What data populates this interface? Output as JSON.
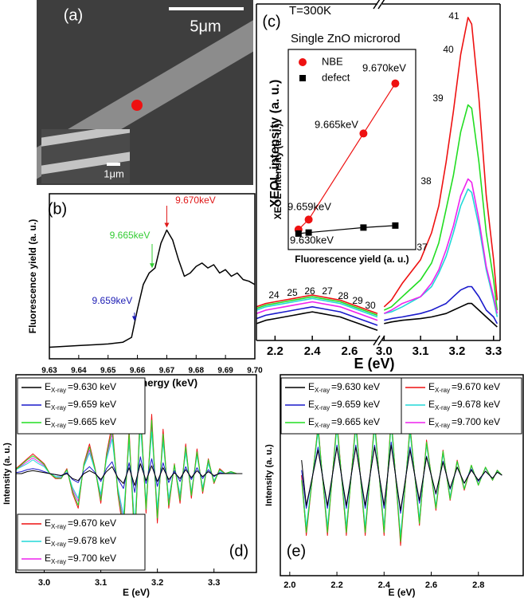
{
  "image_panel": {
    "label": "(a)",
    "scale_bar": "5μm",
    "inset_scale_bar": "1μm"
  },
  "chart_data": [
    {
      "type": "line",
      "panel_label": "(b)",
      "x_label": "X-ray energy (keV)",
      "y_label": "Fluorescence yield (a. u.)",
      "xlim": [
        9.63,
        9.7
      ],
      "xticks": [
        9.63,
        9.64,
        9.65,
        9.66,
        9.67,
        9.68,
        9.69,
        {
          "value": 9.7,
          "label": "9.70"
        }
      ],
      "ylim": [
        0,
        1
      ],
      "color": "#000000",
      "x": [
        9.63,
        9.64,
        9.65,
        9.655,
        9.658,
        9.66,
        9.662,
        9.664,
        9.666,
        9.668,
        9.67,
        9.672,
        9.674,
        9.676,
        9.678,
        9.68,
        9.682,
        9.684,
        9.686,
        9.688,
        9.69,
        9.692,
        9.694,
        9.696,
        9.698,
        9.7
      ],
      "values": [
        0.07,
        0.08,
        0.09,
        0.1,
        0.13,
        0.3,
        0.45,
        0.52,
        0.55,
        0.7,
        0.78,
        0.72,
        0.6,
        0.5,
        0.52,
        0.56,
        0.58,
        0.55,
        0.57,
        0.52,
        0.54,
        0.5,
        0.52,
        0.48,
        0.47,
        0.45
      ],
      "annotations": [
        {
          "x": 9.659,
          "text": "9.659keV",
          "color": "#1c1cb4"
        },
        {
          "x": 9.665,
          "text": "9.665keV",
          "color": "#33cc33"
        },
        {
          "x": 9.67,
          "text": "9.670keV",
          "color": "#e01818"
        }
      ]
    },
    {
      "type": "broken_line",
      "panel_label": "(c)",
      "title": "T=300K",
      "subtitle": "Single ZnO microrod",
      "x_label": "E (eV)",
      "y_label": "XEOL intensity (a. u.)",
      "ylim": [
        0,
        1
      ],
      "segments": [
        {
          "xlim": [
            2.1,
            2.75
          ],
          "xticks": [
            2.2,
            2.4,
            2.6
          ],
          "x": [
            2.1,
            2.15,
            2.2,
            2.25,
            2.3,
            2.35,
            2.4,
            2.45,
            2.5,
            2.55,
            2.6,
            2.65,
            2.7,
            2.75
          ],
          "series": [
            {
              "color": "#000000",
              "values": [
                0.05,
                0.06,
                0.065,
                0.07,
                0.075,
                0.08,
                0.085,
                0.08,
                0.075,
                0.07,
                0.06,
                0.05,
                0.04,
                0.03
              ]
            },
            {
              "color": "#1a1acc",
              "values": [
                0.065,
                0.075,
                0.08,
                0.085,
                0.09,
                0.095,
                0.1,
                0.095,
                0.09,
                0.085,
                0.075,
                0.065,
                0.055,
                0.045
              ]
            },
            {
              "color": "#ee22ee",
              "values": [
                0.08,
                0.09,
                0.095,
                0.1,
                0.105,
                0.11,
                0.115,
                0.11,
                0.105,
                0.1,
                0.09,
                0.08,
                0.07,
                0.06
              ]
            },
            {
              "color": "#22d8d8",
              "values": [
                0.09,
                0.1,
                0.105,
                0.11,
                0.115,
                0.12,
                0.125,
                0.12,
                0.115,
                0.11,
                0.1,
                0.09,
                0.08,
                0.07
              ]
            },
            {
              "color": "#22dd22",
              "values": [
                0.095,
                0.105,
                0.11,
                0.115,
                0.12,
                0.125,
                0.13,
                0.125,
                0.12,
                0.115,
                0.105,
                0.095,
                0.085,
                0.075
              ]
            },
            {
              "color": "#ee1111",
              "values": [
                0.1,
                0.11,
                0.115,
                0.12,
                0.125,
                0.13,
                0.135,
                0.13,
                0.125,
                0.12,
                0.11,
                0.1,
                0.09,
                0.08
              ]
            }
          ],
          "annotations": [
            "24",
            "25",
            "26",
            "27",
            "28",
            "29",
            "30"
          ]
        },
        {
          "xlim": [
            2.995,
            3.318
          ],
          "xticks": [
            {
              "value": 3,
              "label": "3.0"
            },
            3.1,
            3.2,
            3.3
          ],
          "x": [
            3,
            3.02,
            3.05,
            3.1,
            3.13,
            3.15,
            3.17,
            3.19,
            3.21,
            3.23,
            3.24,
            3.26,
            3.28,
            3.3,
            3.31
          ],
          "series": [
            {
              "color": "#000000",
              "values": [
                0.05,
                0.055,
                0.06,
                0.065,
                0.07,
                0.075,
                0.08,
                0.09,
                0.1,
                0.11,
                0.11,
                0.09,
                0.07,
                0.05,
                0.04
              ]
            },
            {
              "color": "#1a1acc",
              "values": [
                0.06,
                0.065,
                0.07,
                0.08,
                0.09,
                0.1,
                0.11,
                0.13,
                0.15,
                0.16,
                0.16,
                0.13,
                0.09,
                0.07,
                0.05
              ]
            },
            {
              "color": "#ee22ee",
              "values": [
                0.08,
                0.09,
                0.11,
                0.13,
                0.17,
                0.21,
                0.27,
                0.34,
                0.43,
                0.48,
                0.47,
                0.36,
                0.22,
                0.13,
                0.08
              ]
            },
            {
              "color": "#22d8d8",
              "values": [
                0.08,
                0.085,
                0.1,
                0.13,
                0.16,
                0.2,
                0.25,
                0.32,
                0.4,
                0.45,
                0.44,
                0.34,
                0.21,
                0.12,
                0.07
              ]
            },
            {
              "color": "#22dd22",
              "values": [
                0.09,
                0.1,
                0.13,
                0.18,
                0.23,
                0.29,
                0.39,
                0.49,
                0.62,
                0.7,
                0.69,
                0.53,
                0.32,
                0.18,
                0.09
              ]
            },
            {
              "color": "#ee1111",
              "values": [
                0.1,
                0.12,
                0.17,
                0.24,
                0.32,
                0.4,
                0.53,
                0.68,
                0.85,
                0.96,
                0.94,
                0.72,
                0.43,
                0.24,
                0.12
              ]
            }
          ],
          "annotations": [
            "37",
            "38",
            "39",
            "40",
            "41"
          ]
        }
      ]
    },
    {
      "type": "scatter",
      "x_label": "Fluorescence yield (a. u.)",
      "y_label": "XEOL intensity (a. u.)",
      "xlim": [
        0,
        1
      ],
      "ylim": [
        0,
        1
      ],
      "x": [
        0.08,
        0.16,
        0.59,
        0.84
      ],
      "series": [
        {
          "name": "NBE",
          "color": "#ee1111",
          "marker": "circle",
          "values": [
            0.1,
            0.15,
            0.58,
            0.83
          ]
        },
        {
          "name": "defect",
          "color": "#000000",
          "marker": "square",
          "values": [
            0.08,
            0.085,
            0.11,
            0.12
          ]
        }
      ],
      "annotations": [
        "9.670keV",
        "9.665keV",
        "9.659keV",
        "9.630keV"
      ]
    },
    {
      "type": "line",
      "panel_label": "(d)",
      "x_label": "E (eV)",
      "y_label": "Intensity (a. u.)",
      "legend_prefix": "E",
      "legend_subscript": "X-ray",
      "xlim": [
        2.95,
        3.375
      ],
      "xticks": [
        {
          "value": 3,
          "label": "3.0"
        },
        3.1,
        3.2,
        3.3
      ],
      "ylim": [
        -1,
        1
      ],
      "x": [
        2.95,
        2.96,
        2.97,
        2.98,
        2.99,
        3,
        3.01,
        3.02,
        3.03,
        3.04,
        3.05,
        3.06,
        3.07,
        3.08,
        3.09,
        3.1,
        3.11,
        3.12,
        3.13,
        3.14,
        3.15,
        3.16,
        3.17,
        3.18,
        3.19,
        3.2,
        3.21,
        3.22,
        3.23,
        3.24,
        3.25,
        3.26,
        3.27,
        3.28,
        3.29,
        3.3,
        3.31,
        3.32,
        3.33,
        3.34,
        3.35
      ],
      "series": [
        {
          "name": "=9.630 keV",
          "color": "#000000",
          "values": [
            0,
            0,
            0.02,
            0.03,
            0.02,
            0.01,
            0,
            -0.01,
            -0.02,
            0,
            -0.05,
            -0.07,
            0,
            0.03,
            0,
            -0.06,
            0.02,
            0.07,
            -0.04,
            -0.1,
            0.06,
            -0.12,
            0.1,
            -0.07,
            0.08,
            -0.08,
            0.06,
            -0.06,
            0.01,
            -0.05,
            0.04,
            -0.04,
            0.03,
            -0.03,
            0.02,
            -0.02,
            0,
            0,
            0,
            0,
            0
          ]
        },
        {
          "name": "=9.659 keV",
          "color": "#1a1acc",
          "values": [
            0.01,
            0.02,
            0.04,
            0.05,
            0.04,
            0.02,
            0,
            -0.01,
            -0.02,
            0.01,
            -0.06,
            -0.09,
            0.02,
            0.07,
            0.01,
            -0.08,
            0.05,
            0.12,
            -0.05,
            -0.15,
            0.11,
            -0.19,
            0.17,
            -0.1,
            0.15,
            -0.13,
            0.11,
            -0.09,
            0.03,
            -0.08,
            0.07,
            -0.06,
            0.06,
            -0.05,
            0.04,
            -0.03,
            0.01,
            0,
            0,
            0,
            0
          ]
        },
        {
          "name": "=9.665 keV",
          "color": "#22dd22",
          "values": [
            0.04,
            0.09,
            0.14,
            0.18,
            0.14,
            0.09,
            0,
            -0.04,
            -0.05,
            0.04,
            -0.18,
            -0.32,
            0.09,
            0.27,
            0.04,
            -0.27,
            0.18,
            0.45,
            -0.18,
            -0.54,
            0.4,
            -0.68,
            0.63,
            -0.36,
            0.54,
            -0.45,
            0.4,
            -0.32,
            0.09,
            -0.27,
            0.27,
            -0.22,
            0.22,
            -0.18,
            0.14,
            -0.09,
            0.04,
            0,
            0.02,
            0,
            0
          ]
        },
        {
          "name": "=9.670 keV",
          "color": "#ee1111",
          "values": [
            0.05,
            0.1,
            0.15,
            0.2,
            0.15,
            0.1,
            0,
            -0.05,
            -0.05,
            0.05,
            -0.2,
            -0.35,
            0.1,
            0.3,
            0.05,
            -0.3,
            0.2,
            0.5,
            -0.2,
            -0.6,
            0.45,
            -0.75,
            0.7,
            -0.4,
            0.6,
            -0.5,
            0.45,
            -0.35,
            0.1,
            -0.3,
            0.3,
            -0.25,
            0.25,
            -0.2,
            0.15,
            -0.1,
            0.05,
            0,
            0.02,
            0,
            0
          ]
        },
        {
          "name": "=9.678 keV",
          "color": "#22d8d8",
          "values": [
            0.04,
            0.07,
            0.1,
            0.14,
            0.1,
            0.07,
            0,
            -0.03,
            -0.03,
            0.03,
            -0.14,
            -0.25,
            0.07,
            0.21,
            0.03,
            -0.21,
            0.14,
            0.35,
            -0.14,
            -0.42,
            0.32,
            -0.52,
            0.49,
            -0.28,
            0.42,
            -0.35,
            0.32,
            -0.25,
            0.07,
            -0.21,
            0.21,
            -0.18,
            0.18,
            -0.14,
            0.1,
            -0.07,
            0.03,
            0,
            0.01,
            0,
            0
          ]
        },
        {
          "name": "=9.700 keV",
          "color": "#ee22ee",
          "values": [
            0.04,
            0.08,
            0.12,
            0.16,
            0.12,
            0.08,
            0,
            -0.04,
            -0.04,
            0.04,
            -0.16,
            -0.28,
            0.08,
            0.24,
            0.04,
            -0.24,
            0.16,
            0.4,
            -0.16,
            -0.48,
            0.36,
            -0.6,
            0.56,
            -0.32,
            0.48,
            -0.4,
            0.36,
            -0.28,
            0.08,
            -0.24,
            0.24,
            -0.2,
            0.2,
            -0.16,
            0.12,
            -0.08,
            0.04,
            0,
            0.02,
            0,
            0
          ]
        }
      ]
    },
    {
      "type": "line",
      "panel_label": "(e)",
      "x_label": "E (eV)",
      "y_label": "Intensity (a. u.)",
      "legend_prefix": "E",
      "legend_subscript": "X-ray",
      "xlim": [
        1.96,
        2.99
      ],
      "xticks": [
        {
          "value": 2,
          "label": "2.0"
        },
        2.2,
        2.4,
        2.6,
        2.8
      ],
      "ylim": [
        -1,
        1
      ],
      "x": [
        2.05,
        2.07,
        2.12,
        2.16,
        2.2,
        2.24,
        2.28,
        2.32,
        2.36,
        2.4,
        2.43,
        2.47,
        2.51,
        2.55,
        2.58,
        2.62,
        2.65,
        2.68,
        2.71,
        2.74,
        2.77,
        2.8,
        2.83,
        2.86,
        2.88,
        2.9
      ],
      "series": [
        {
          "name": "=9.630 keV",
          "color": "#000000",
          "values": [
            0.15,
            -0.3,
            0.25,
            -0.3,
            0.28,
            -0.3,
            0.28,
            -0.3,
            0.28,
            -0.3,
            0.3,
            -0.35,
            0.25,
            -0.25,
            0.18,
            -0.18,
            0.13,
            -0.13,
            0.08,
            -0.08,
            0.05,
            -0.05,
            0.04,
            -0.03,
            0.03,
            0
          ]
        },
        {
          "name": "=9.659 keV",
          "color": "#1a1acc",
          "values": [
            0.05,
            -0.33,
            0.28,
            -0.33,
            0.3,
            -0.33,
            0.3,
            -0.33,
            0.3,
            -0.33,
            0.33,
            -0.38,
            0.28,
            -0.28,
            0.19,
            -0.19,
            0.14,
            -0.14,
            0.08,
            -0.08,
            0.06,
            -0.06,
            0.04,
            -0.03,
            0.03,
            0
          ]
        },
        {
          "name": "=9.665 keV",
          "color": "#22dd22",
          "values": [
            -0.05,
            -0.57,
            0.48,
            -0.57,
            0.52,
            -0.57,
            0.52,
            -0.57,
            0.52,
            -0.57,
            0.57,
            -0.66,
            0.48,
            -0.48,
            0.33,
            -0.33,
            0.24,
            -0.24,
            0.14,
            -0.14,
            0.1,
            -0.1,
            0.08,
            -0.05,
            0.05,
            0
          ]
        },
        {
          "name": "=9.670 keV",
          "color": "#ee1111",
          "values": [
            0,
            -0.6,
            0.5,
            -0.6,
            0.55,
            -0.6,
            0.55,
            -0.6,
            0.55,
            -0.6,
            0.6,
            -0.7,
            0.5,
            -0.5,
            0.35,
            -0.35,
            0.25,
            -0.25,
            0.15,
            -0.15,
            0.1,
            -0.1,
            0.08,
            -0.05,
            0.05,
            0
          ]
        },
        {
          "name": "=9.678 keV",
          "color": "#22d8d8",
          "values": [
            0,
            -0.51,
            0.43,
            -0.51,
            0.47,
            -0.51,
            0.47,
            -0.51,
            0.47,
            -0.51,
            0.51,
            -0.6,
            0.43,
            -0.43,
            0.3,
            -0.3,
            0.21,
            -0.21,
            0.13,
            -0.13,
            0.09,
            -0.09,
            0.07,
            -0.04,
            0.04,
            0
          ]
        },
        {
          "name": "=9.700 keV",
          "color": "#ee22ee",
          "values": [
            0,
            -0.54,
            0.45,
            -0.54,
            0.5,
            -0.54,
            0.5,
            -0.54,
            0.5,
            -0.54,
            0.54,
            -0.63,
            0.45,
            -0.45,
            0.32,
            -0.32,
            0.23,
            -0.23,
            0.14,
            -0.14,
            0.09,
            -0.09,
            0.07,
            -0.05,
            0.05,
            0
          ]
        }
      ]
    }
  ]
}
